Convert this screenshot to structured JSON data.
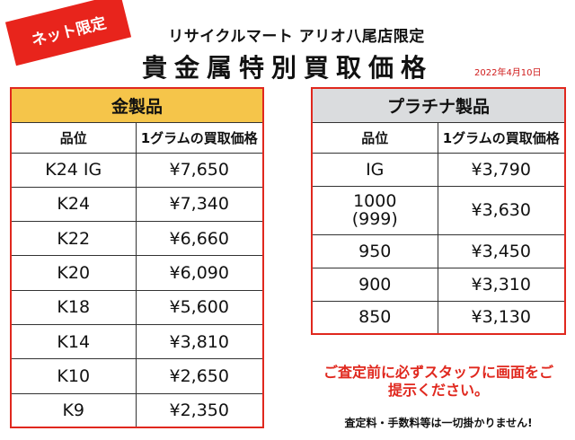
{
  "badge": "ネット限定",
  "store_name": "リサイクルマート アリオ八尾店限定",
  "title": "貴金属特別買取価格",
  "date": "2022年4月10日",
  "gold": {
    "header": "金製品",
    "col_grade": "品位",
    "col_price": "1グラムの買取価格",
    "rows": [
      {
        "grade": "K24 IG",
        "price": "¥7,650"
      },
      {
        "grade": "K24",
        "price": "¥7,340"
      },
      {
        "grade": "K22",
        "price": "¥6,660"
      },
      {
        "grade": "K20",
        "price": "¥6,090"
      },
      {
        "grade": "K18",
        "price": "¥5,600"
      },
      {
        "grade": "K14",
        "price": "¥3,810"
      },
      {
        "grade": "K10",
        "price": "¥2,650"
      },
      {
        "grade": "K9",
        "price": "¥2,350"
      }
    ]
  },
  "platinum": {
    "header": "プラチナ製品",
    "col_grade": "品位",
    "col_price": "1グラムの買取価格",
    "rows": [
      {
        "grade": "IG",
        "price": "¥3,790"
      },
      {
        "grade": "1000",
        "grade_sub": "(999)",
        "price": "¥3,630"
      },
      {
        "grade": "950",
        "price": "¥3,450"
      },
      {
        "grade": "900",
        "price": "¥3,310"
      },
      {
        "grade": "850",
        "price": "¥3,130"
      }
    ]
  },
  "notice_line1": "ご査定前に必ずスタッフに画面をご",
  "notice_line2": "提示ください。",
  "fees_note": "査定料・手数料等は一切掛かりません!",
  "colors": {
    "accent_red": "#e0281e",
    "gold_header": "#f5c54a",
    "platinum_header": "#dadcde"
  }
}
